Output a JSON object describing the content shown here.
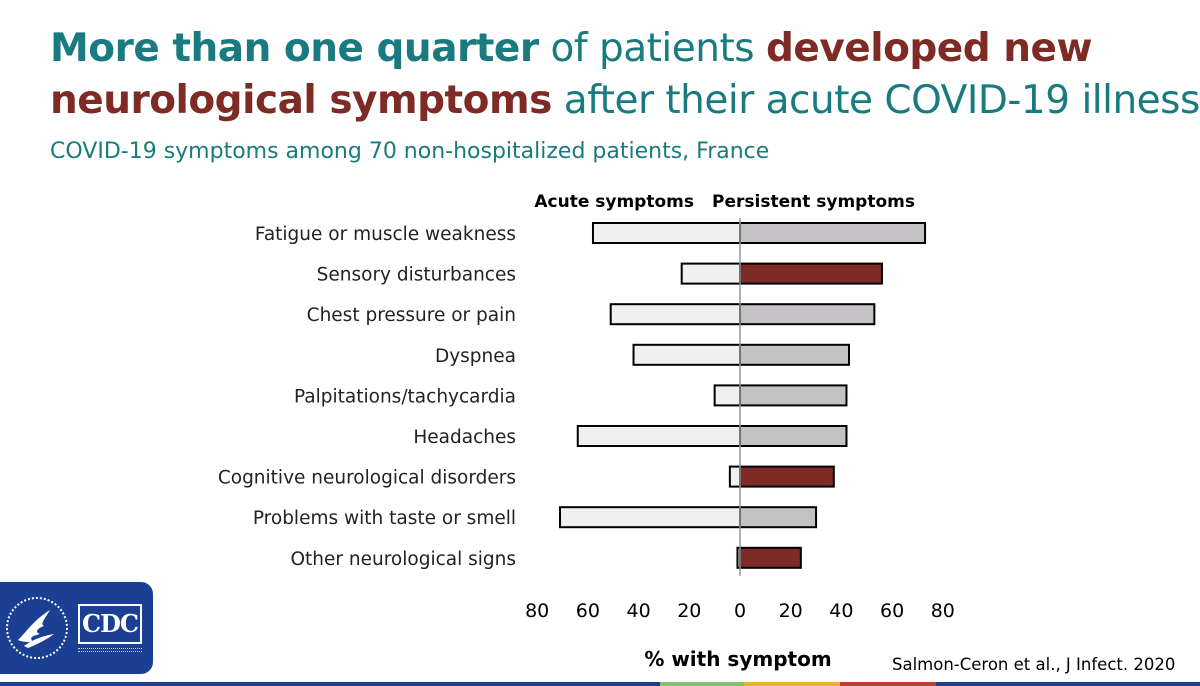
{
  "title": {
    "line1": [
      {
        "text": "More than one quarter",
        "style": "teal-bold"
      },
      {
        "text": " of patients ",
        "style": "normal"
      },
      {
        "text": "developed new",
        "style": "red-bold"
      }
    ],
    "line2": [
      {
        "text": "neurological symptoms",
        "style": "red-bold"
      },
      {
        "text": " after their acute COVID-19 illness.",
        "style": "normal"
      }
    ]
  },
  "subtitle": "COVID-19 symptoms among 70 non-hospitalized patients, France",
  "colors": {
    "title_teal": "#197b80",
    "highlight_red": "#7d2b24",
    "acute_bar": "#f0f0f0",
    "persistent_bar": "#c3c1c4",
    "persistent_neuro_bar": "#7d2b24",
    "cdc_blue": "#1b3f93"
  },
  "chart_data": {
    "type": "bar",
    "orientation": "horizontal-diverging",
    "categories": [
      "Fatigue or muscle weakness",
      "Sensory disturbances",
      "Chest pressure or pain",
      "Dyspnea",
      "Palpitations/tachycardia",
      "Headaches",
      "Cognitive neurological disorders",
      "Problems with taste or smell",
      "Other neurological signs"
    ],
    "series": [
      {
        "name": "Acute symptoms",
        "direction": "left",
        "values": [
          58,
          23,
          51,
          42,
          10,
          64,
          4,
          71,
          1
        ]
      },
      {
        "name": "Persistent symptoms",
        "direction": "right",
        "values": [
          73,
          56,
          53,
          43,
          42,
          42,
          37,
          30,
          24
        ]
      }
    ],
    "highlighted_categories": [
      "Sensory disturbances",
      "Cognitive neurological disorders",
      "Other neurological signs"
    ],
    "xlabel": "% with symptom",
    "ticks_left": [
      "80",
      "60",
      "40",
      "20"
    ],
    "ticks_right": [
      "0",
      "20",
      "40",
      "60",
      "80"
    ],
    "xlim": [
      -80,
      80
    ],
    "grid": false
  },
  "citation": "Salmon-Ceron et al., J Infect. 2020"
}
